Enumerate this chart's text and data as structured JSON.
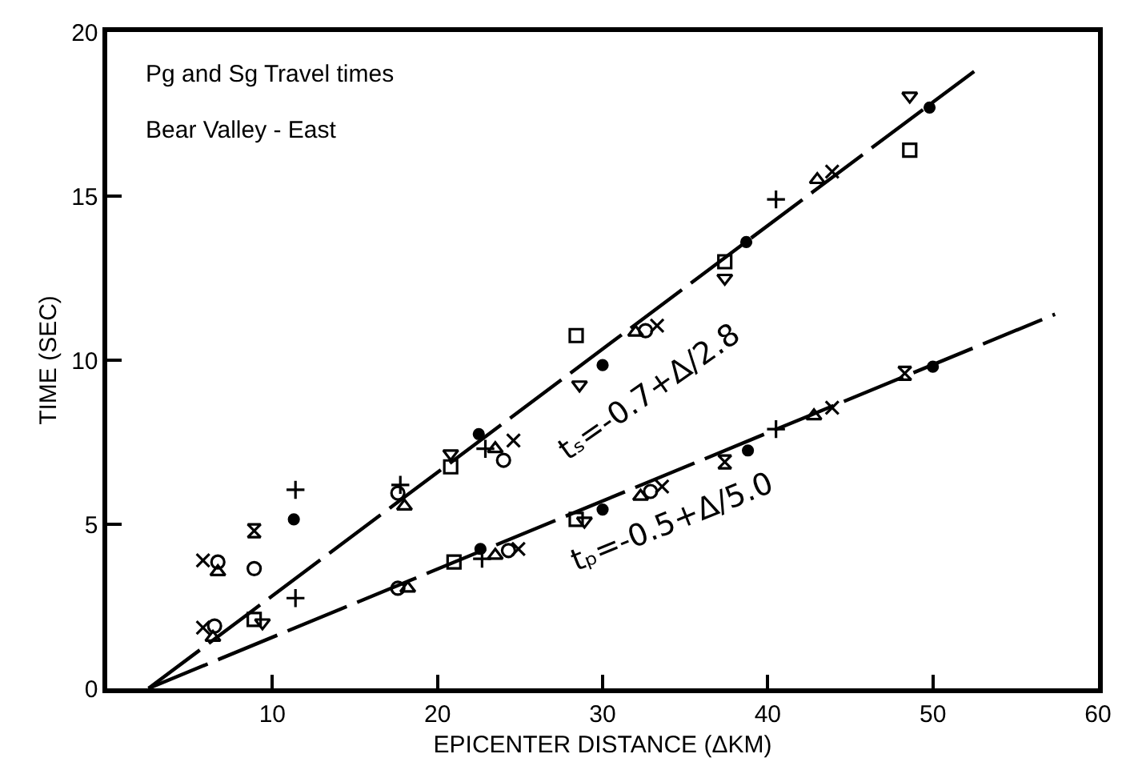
{
  "chart_data": {
    "type": "scatter",
    "xlabel": "EPICENTER DISTANCE (ΔKM)",
    "ylabel": "TIME (SEC)",
    "xlim": [
      0,
      60
    ],
    "xticks": [
      10,
      20,
      30,
      40,
      50,
      60
    ],
    "ylim": [
      0,
      20
    ],
    "yticks": [
      0,
      5,
      10,
      15,
      20
    ],
    "grid": false,
    "annotations": [
      "Pg and Sg Travel times",
      "Bear Valley - East",
      "tₛ=-0.7+Δ/2.8",
      "tₚ=-0.5+Δ/5.0"
    ],
    "series": [
      {
        "marker": "circle",
        "color": "#000000",
        "x": [
          6.7,
          8.9,
          6.5,
          17.6,
          17.6,
          24.0,
          32.6,
          24.3,
          32.9
        ],
        "values": [
          3.85,
          3.65,
          1.9,
          5.95,
          3.05,
          6.95,
          10.9,
          4.2,
          6.0
        ]
      },
      {
        "marker": "dot",
        "color": "#000000",
        "x": [
          11.3,
          22.5,
          30.0,
          38.7,
          49.8,
          22.6,
          30.0,
          38.8,
          50.0
        ],
        "values": [
          5.15,
          7.75,
          9.85,
          13.6,
          17.7,
          4.25,
          5.45,
          7.25,
          9.8
        ]
      },
      {
        "marker": "cross",
        "color": "#000000",
        "x": [
          11.4,
          11.4,
          17.75,
          22.9,
          40.5,
          22.7,
          40.5
        ],
        "values": [
          6.05,
          2.75,
          6.2,
          7.3,
          14.9,
          3.95,
          7.9
        ]
      },
      {
        "marker": "x",
        "color": "#000000",
        "x": [
          5.8,
          5.8,
          24.6,
          33.3,
          43.9,
          24.9,
          33.6,
          43.9
        ],
        "values": [
          3.9,
          1.85,
          7.55,
          11.05,
          15.75,
          4.25,
          6.15,
          8.55
        ]
      },
      {
        "marker": "triangle",
        "color": "#000000",
        "x": [
          6.7,
          6.4,
          18.0,
          18.2,
          23.5,
          32.0,
          43.0,
          23.5,
          32.3,
          42.8
        ],
        "values": [
          3.55,
          1.55,
          5.55,
          3.05,
          7.3,
          10.85,
          15.5,
          4.05,
          5.85,
          8.3
        ]
      },
      {
        "marker": "triangle-down",
        "color": "#000000",
        "x": [
          9.4,
          20.8,
          28.6,
          37.4,
          48.6,
          28.9
        ],
        "values": [
          2.0,
          7.15,
          9.25,
          12.5,
          18.05,
          5.1
        ]
      },
      {
        "marker": "square",
        "color": "#000000",
        "x": [
          8.9,
          20.8,
          28.4,
          37.4,
          48.6,
          21.0,
          28.4
        ],
        "values": [
          2.1,
          6.75,
          10.75,
          13.0,
          16.4,
          3.85,
          5.15
        ]
      },
      {
        "color": "#000000",
        "x": [
          8.9,
          37.4,
          48.3
        ],
        "values": [
          4.8,
          6.9,
          9.6
        ]
      },
      {
        "type": "line",
        "marker": "none",
        "line_style": "dashed",
        "color": "#000000",
        "x": [
          2.5,
          52.5
        ],
        "values": [
          0,
          18.8
        ]
      },
      {
        "type": "line",
        "marker": "none",
        "line_style": "dashed",
        "color": "#000000",
        "x": [
          2.5,
          57.4
        ],
        "values": [
          0,
          11.4
        ]
      }
    ]
  }
}
